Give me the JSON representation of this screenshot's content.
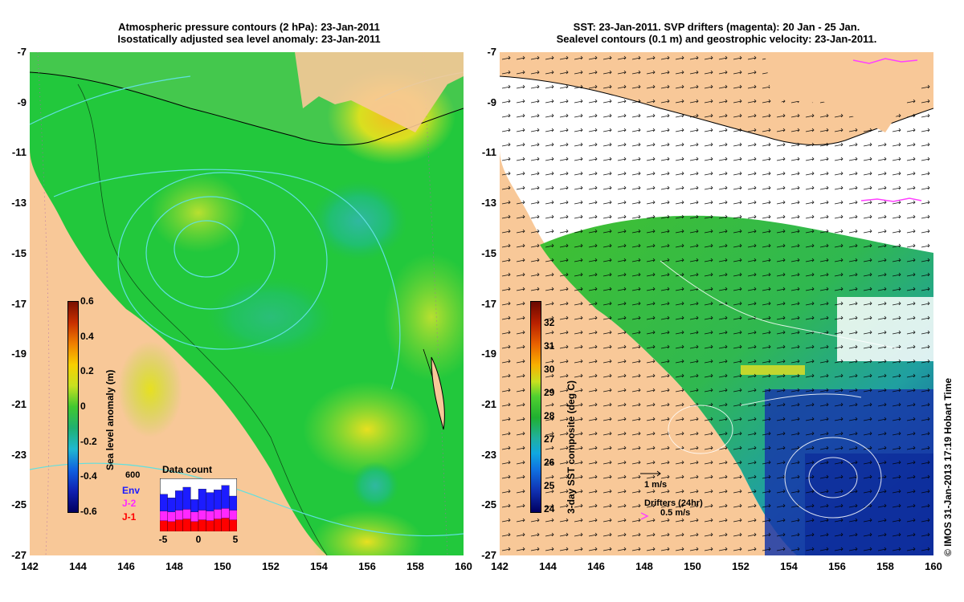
{
  "left_panel": {
    "title_line1": "Atmospheric pressure contours (2 hPa): 23-Jan-2011",
    "title_line2": "Isostatically adjusted sea level anomaly: 23-Jan-2011",
    "colorbar": {
      "label": "Sea level anomaly (m)",
      "ticks": [
        "0.6",
        "0.4",
        "0.2",
        "0",
        "-0.2",
        "-0.4",
        "-0.6"
      ],
      "min": -0.6,
      "max": 0.6
    },
    "data_count": {
      "title": "Data count",
      "y_tick": "600",
      "x_ticks": [
        "-5",
        "0",
        "5"
      ],
      "legend": [
        {
          "label": "Env",
          "color": "#1c1cff"
        },
        {
          "label": "J-2",
          "color": "#ff28ff"
        },
        {
          "label": "J-1",
          "color": "#ff0000"
        }
      ],
      "series": {
        "Env": [
          420,
          380,
          460,
          500,
          360,
          480,
          440,
          470,
          520,
          400
        ],
        "J-2": [
          230,
          220,
          240,
          250,
          220,
          240,
          230,
          250,
          260,
          240
        ],
        "J-1": [
          120,
          110,
          130,
          140,
          110,
          130,
          120,
          140,
          150,
          130
        ]
      }
    }
  },
  "right_panel": {
    "title_line1": "SST: 23-Jan-2011. SVP drifters (magenta): 20 Jan - 25 Jan.",
    "title_line2": "Sealevel contours (0.1 m) and geostrophic velocity: 23-Jan-2011.",
    "colorbar": {
      "label": "3-day SST composite (deg C)",
      "ticks": [
        "32",
        "31",
        "30",
        "29",
        "28",
        "27",
        "26",
        "25",
        "24"
      ],
      "min": 24,
      "max": 33
    },
    "velocity_scale": "1 m/s",
    "drifters_label": "Drifters (24hr)",
    "drifters_scale": "0.5 m/s"
  },
  "axes": {
    "x_ticks": [
      "142",
      "144",
      "146",
      "148",
      "150",
      "152",
      "154",
      "156",
      "158",
      "160"
    ],
    "y_ticks": [
      "-7",
      "-9",
      "-11",
      "-13",
      "-15",
      "-17",
      "-19",
      "-21",
      "-23",
      "-25",
      "-27"
    ],
    "lon_range": [
      142,
      160
    ],
    "lat_range": [
      -27,
      -7
    ]
  },
  "credit": "© IMOS 31-Jan-2013 17:19 Hobart Time",
  "colors": {
    "land": "#f8c898",
    "sst_cold": "#1030a0",
    "sla_green": "#22c83c"
  }
}
